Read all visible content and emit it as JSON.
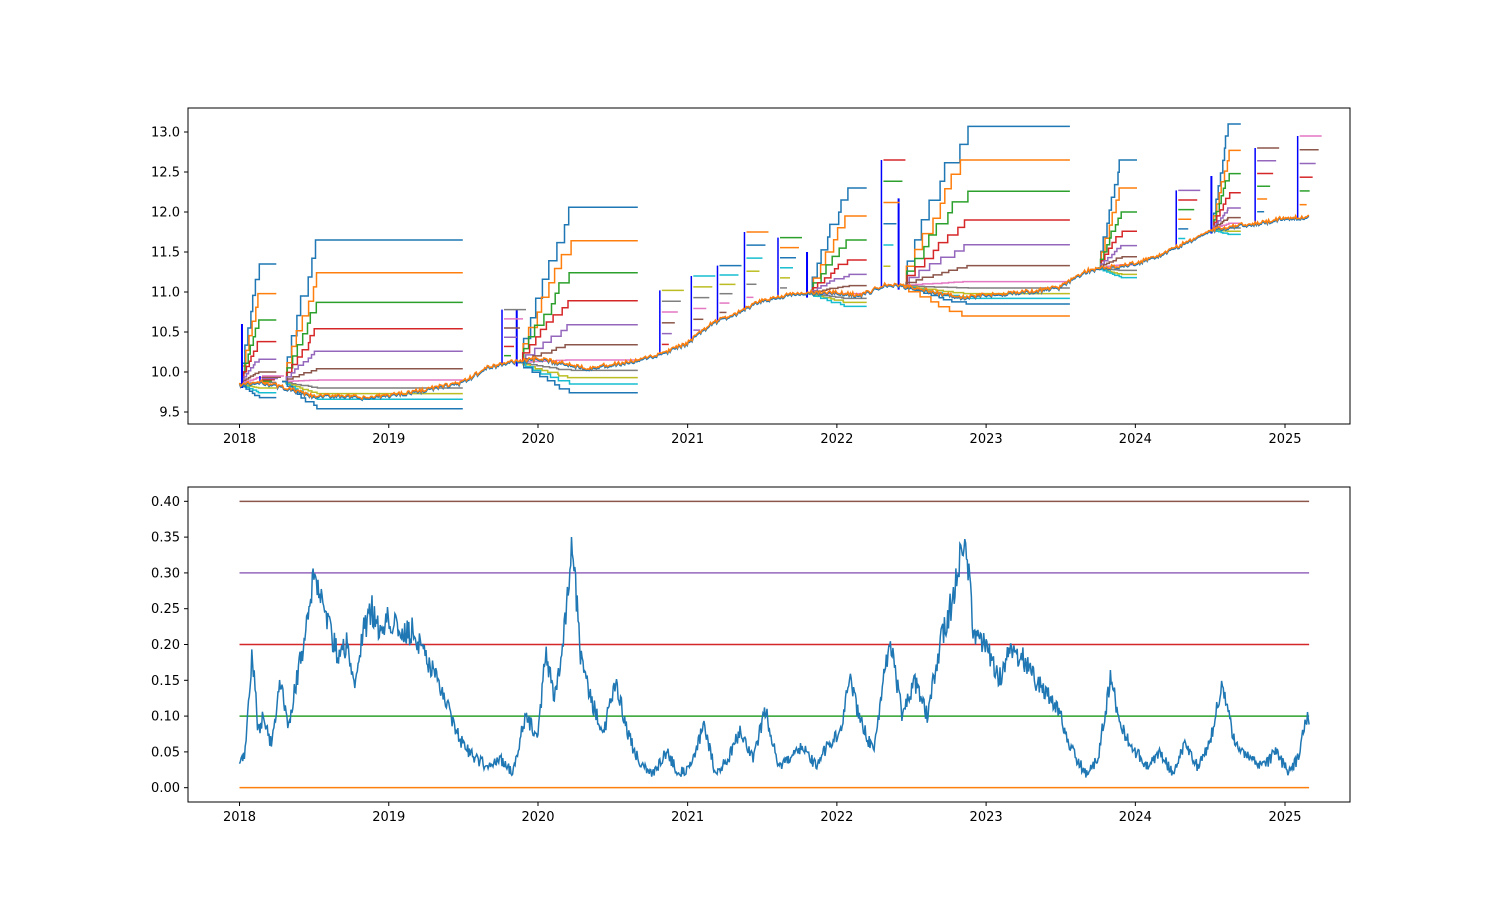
{
  "chart_data": [
    {
      "type": "line",
      "title": "",
      "xlabel": "",
      "ylabel": "",
      "x_tick_labels": [
        "2018",
        "2019",
        "2020",
        "2021",
        "2022",
        "2023",
        "2024",
        "2025"
      ],
      "y_tick_labels": [
        "9.5",
        "10.0",
        "10.5",
        "11.0",
        "11.5",
        "12.0",
        "12.5",
        "13.0"
      ],
      "xlim": [
        "2017-08-28",
        "2025-06-09"
      ],
      "ylim": [
        9.35,
        13.3
      ],
      "grid": false,
      "legend": "none",
      "main_series": {
        "color": "#1f77b4",
        "points": [
          [
            "2018-01-01",
            9.83
          ],
          [
            "2018-03-01",
            9.86
          ],
          [
            "2018-05-01",
            9.78
          ],
          [
            "2018-07-01",
            9.68
          ],
          [
            "2018-09-01",
            9.7
          ],
          [
            "2018-11-01",
            9.66
          ],
          [
            "2019-01-01",
            9.7
          ],
          [
            "2019-03-01",
            9.74
          ],
          [
            "2019-05-01",
            9.8
          ],
          [
            "2019-07-01",
            9.86
          ],
          [
            "2019-09-01",
            10.05
          ],
          [
            "2019-11-01",
            10.12
          ],
          [
            "2020-01-01",
            10.15
          ],
          [
            "2020-03-01",
            10.1
          ],
          [
            "2020-05-01",
            10.04
          ],
          [
            "2020-07-01",
            10.08
          ],
          [
            "2020-09-01",
            10.13
          ],
          [
            "2020-11-01",
            10.22
          ],
          [
            "2021-01-01",
            10.35
          ],
          [
            "2021-03-01",
            10.6
          ],
          [
            "2021-05-01",
            10.72
          ],
          [
            "2021-07-01",
            10.88
          ],
          [
            "2021-09-01",
            10.95
          ],
          [
            "2021-11-01",
            10.98
          ],
          [
            "2022-01-01",
            10.98
          ],
          [
            "2022-03-01",
            10.95
          ],
          [
            "2022-05-01",
            11.08
          ],
          [
            "2022-07-01",
            11.05
          ],
          [
            "2022-09-01",
            10.98
          ],
          [
            "2022-11-01",
            10.92
          ],
          [
            "2023-01-01",
            10.95
          ],
          [
            "2023-03-01",
            10.98
          ],
          [
            "2023-05-01",
            11.0
          ],
          [
            "2023-07-01",
            11.05
          ],
          [
            "2023-09-01",
            11.25
          ],
          [
            "2023-11-01",
            11.3
          ],
          [
            "2024-01-01",
            11.35
          ],
          [
            "2024-03-01",
            11.45
          ],
          [
            "2024-05-01",
            11.6
          ],
          [
            "2024-07-01",
            11.75
          ],
          [
            "2024-09-01",
            11.82
          ],
          [
            "2024-11-01",
            11.85
          ],
          [
            "2025-01-01",
            11.92
          ],
          [
            "2025-03-01",
            11.92
          ]
        ]
      },
      "segments": [
        {
          "start": "2018-01-01",
          "end": "2018-04-01",
          "base": 9.85,
          "rise_end": "2018-02-20",
          "spike": {
            "date": "2018-01-07",
            "top": 10.6
          },
          "levels": [
            11.35,
            10.98,
            10.65,
            10.38,
            10.16,
            10.0,
            9.93,
            9.87,
            9.8,
            9.74,
            9.68
          ]
        },
        {
          "start": "2018-04-15",
          "end": "2019-07-01",
          "base": 9.88,
          "rise_end": "2018-07-15",
          "levels": [
            11.65,
            11.24,
            10.87,
            10.54,
            10.26,
            10.04,
            9.9,
            9.8,
            9.73,
            9.66,
            9.54
          ]
        },
        {
          "start": "2019-11-10",
          "end": "2020-09-01",
          "base": 10.12,
          "rise_end": "2020-03-25",
          "spike": {
            "date": "2019-11-10",
            "top": 10.78
          },
          "levels": [
            12.06,
            11.64,
            11.24,
            10.89,
            10.59,
            10.34,
            10.15,
            10.02,
            9.93,
            9.85,
            9.74
          ]
        },
        {
          "start": "2021-10-20",
          "end": "2022-03-15",
          "base": 10.98,
          "rise_end": "2022-02-01",
          "spike": {
            "date": "2021-10-20",
            "top": 11.5
          },
          "levels": [
            12.3,
            11.95,
            11.65,
            11.4,
            11.22,
            11.08,
            10.98,
            10.92,
            10.87,
            10.82
          ]
        },
        {
          "start": "2022-06-01",
          "end": "2023-07-25",
          "base": 11.08,
          "rise_end": "2022-11-20",
          "spike": {
            "date": "2022-06-01",
            "top": 12.17
          },
          "levels": [
            13.07,
            12.65,
            12.26,
            11.9,
            11.59,
            11.33,
            11.13,
            11.05,
            10.98,
            10.92,
            10.85,
            10.7
          ]
        },
        {
          "start": "2023-10-01",
          "end": "2024-01-05",
          "base": 11.3,
          "rise_end": "2023-12-01",
          "levels": [
            12.65,
            12.3,
            12.0,
            11.76,
            11.58,
            11.44,
            11.34,
            11.27,
            11.22,
            11.18
          ]
        },
        {
          "start": "2024-07-05",
          "end": "2024-09-15",
          "base": 11.78,
          "rise_end": "2024-08-20",
          "spike": {
            "date": "2024-07-05",
            "top": 12.45
          },
          "levels": [
            13.1,
            12.77,
            12.48,
            12.24,
            12.05,
            11.93,
            11.86,
            11.8,
            11.76,
            11.72
          ]
        }
      ],
      "short_ladders": [
        {
          "date": "2018-02-20",
          "top": 9.95
        },
        {
          "date": "2019-10-05",
          "top": 10.78
        },
        {
          "date": "2020-10-25",
          "top": 11.02
        },
        {
          "date": "2021-01-10",
          "top": 11.2
        },
        {
          "date": "2021-03-15",
          "top": 11.33
        },
        {
          "date": "2021-05-20",
          "top": 11.75
        },
        {
          "date": "2021-08-10",
          "top": 11.68
        },
        {
          "date": "2022-04-20",
          "top": 12.65
        },
        {
          "date": "2024-04-10",
          "top": 12.27
        },
        {
          "date": "2024-10-20",
          "top": 12.8
        },
        {
          "date": "2025-02-01",
          "top": 12.95
        }
      ]
    },
    {
      "type": "line",
      "title": "",
      "xlabel": "",
      "ylabel": "",
      "x_tick_labels": [
        "2018",
        "2019",
        "2020",
        "2021",
        "2022",
        "2023",
        "2024",
        "2025"
      ],
      "y_tick_labels": [
        "0.00",
        "0.05",
        "0.10",
        "0.15",
        "0.20",
        "0.25",
        "0.30",
        "0.35",
        "0.40"
      ],
      "xlim": [
        "2017-08-28",
        "2025-06-09"
      ],
      "ylim": [
        -0.02,
        0.42
      ],
      "grid": false,
      "legend": "none",
      "hlines": [
        {
          "y": 0.0,
          "color": "#ff7f0e"
        },
        {
          "y": 0.1,
          "color": "#2ca02c"
        },
        {
          "y": 0.2,
          "color": "#d62728"
        },
        {
          "y": 0.3,
          "color": "#9467bd"
        },
        {
          "y": 0.4,
          "color": "#8c564b"
        }
      ],
      "hline_range": [
        "2018-01-01",
        "2025-03-01"
      ],
      "series": {
        "color": "#1f77b4",
        "points": [
          [
            "2018-01-01",
            0.03
          ],
          [
            "2018-01-15",
            0.05
          ],
          [
            "2018-02-01",
            0.19
          ],
          [
            "2018-02-15",
            0.08
          ],
          [
            "2018-03-01",
            0.1
          ],
          [
            "2018-03-20",
            0.06
          ],
          [
            "2018-04-10",
            0.15
          ],
          [
            "2018-04-30",
            0.08
          ],
          [
            "2018-05-20",
            0.15
          ],
          [
            "2018-06-10",
            0.21
          ],
          [
            "2018-07-01",
            0.3
          ],
          [
            "2018-07-20",
            0.27
          ],
          [
            "2018-08-10",
            0.22
          ],
          [
            "2018-09-01",
            0.18
          ],
          [
            "2018-09-20",
            0.2
          ],
          [
            "2018-10-10",
            0.15
          ],
          [
            "2018-11-01",
            0.22
          ],
          [
            "2018-11-20",
            0.25
          ],
          [
            "2018-12-10",
            0.22
          ],
          [
            "2019-01-01",
            0.24
          ],
          [
            "2019-02-01",
            0.21
          ],
          [
            "2019-03-01",
            0.22
          ],
          [
            "2019-04-01",
            0.18
          ],
          [
            "2019-05-01",
            0.15
          ],
          [
            "2019-06-01",
            0.1
          ],
          [
            "2019-07-01",
            0.06
          ],
          [
            "2019-08-01",
            0.04
          ],
          [
            "2019-09-01",
            0.03
          ],
          [
            "2019-10-01",
            0.04
          ],
          [
            "2019-11-01",
            0.02
          ],
          [
            "2019-12-01",
            0.1
          ],
          [
            "2020-01-01",
            0.07
          ],
          [
            "2020-01-20",
            0.19
          ],
          [
            "2020-02-10",
            0.12
          ],
          [
            "2020-03-01",
            0.2
          ],
          [
            "2020-03-25",
            0.34
          ],
          [
            "2020-04-15",
            0.18
          ],
          [
            "2020-05-10",
            0.12
          ],
          [
            "2020-06-10",
            0.08
          ],
          [
            "2020-07-10",
            0.15
          ],
          [
            "2020-08-10",
            0.07
          ],
          [
            "2020-09-10",
            0.03
          ],
          [
            "2020-10-10",
            0.02
          ],
          [
            "2020-11-10",
            0.05
          ],
          [
            "2020-12-10",
            0.02
          ],
          [
            "2021-01-10",
            0.03
          ],
          [
            "2021-02-10",
            0.09
          ],
          [
            "2021-03-10",
            0.02
          ],
          [
            "2021-04-10",
            0.04
          ],
          [
            "2021-05-10",
            0.08
          ],
          [
            "2021-06-10",
            0.04
          ],
          [
            "2021-07-10",
            0.11
          ],
          [
            "2021-08-10",
            0.03
          ],
          [
            "2021-09-10",
            0.04
          ],
          [
            "2021-10-10",
            0.06
          ],
          [
            "2021-11-10",
            0.03
          ],
          [
            "2021-12-10",
            0.06
          ],
          [
            "2022-01-10",
            0.08
          ],
          [
            "2022-02-01",
            0.15
          ],
          [
            "2022-03-01",
            0.09
          ],
          [
            "2022-04-01",
            0.05
          ],
          [
            "2022-05-10",
            0.21
          ],
          [
            "2022-06-10",
            0.1
          ],
          [
            "2022-07-10",
            0.15
          ],
          [
            "2022-08-10",
            0.1
          ],
          [
            "2022-09-10",
            0.2
          ],
          [
            "2022-10-10",
            0.26
          ],
          [
            "2022-11-10",
            0.36
          ],
          [
            "2022-12-01",
            0.22
          ],
          [
            "2023-01-01",
            0.2
          ],
          [
            "2023-02-01",
            0.15
          ],
          [
            "2023-03-01",
            0.19
          ],
          [
            "2023-04-01",
            0.18
          ],
          [
            "2023-05-01",
            0.15
          ],
          [
            "2023-06-01",
            0.13
          ],
          [
            "2023-07-01",
            0.1
          ],
          [
            "2023-08-01",
            0.05
          ],
          [
            "2023-09-01",
            0.02
          ],
          [
            "2023-10-01",
            0.04
          ],
          [
            "2023-11-01",
            0.15
          ],
          [
            "2023-12-01",
            0.08
          ],
          [
            "2024-01-01",
            0.05
          ],
          [
            "2024-02-01",
            0.03
          ],
          [
            "2024-03-01",
            0.05
          ],
          [
            "2024-04-01",
            0.02
          ],
          [
            "2024-05-01",
            0.06
          ],
          [
            "2024-06-01",
            0.03
          ],
          [
            "2024-07-01",
            0.06
          ],
          [
            "2024-08-01",
            0.15
          ],
          [
            "2024-08-20",
            0.09
          ],
          [
            "2024-09-10",
            0.05
          ],
          [
            "2024-10-10",
            0.04
          ],
          [
            "2024-11-10",
            0.03
          ],
          [
            "2024-12-10",
            0.05
          ],
          [
            "2025-01-10",
            0.02
          ],
          [
            "2025-02-01",
            0.04
          ],
          [
            "2025-02-20",
            0.09
          ],
          [
            "2025-03-01",
            0.1
          ]
        ]
      }
    }
  ]
}
